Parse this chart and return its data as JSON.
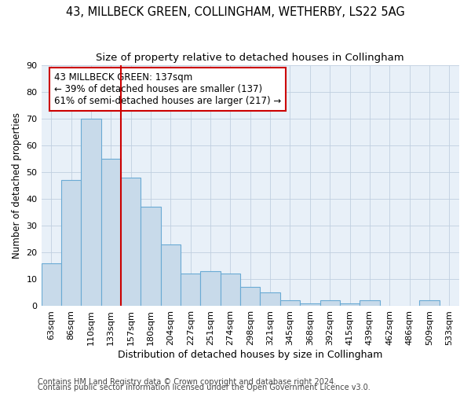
{
  "title1": "43, MILLBECK GREEN, COLLINGHAM, WETHERBY, LS22 5AG",
  "title2": "Size of property relative to detached houses in Collingham",
  "xlabel": "Distribution of detached houses by size in Collingham",
  "ylabel": "Number of detached properties",
  "bar_labels": [
    "63sqm",
    "86sqm",
    "110sqm",
    "133sqm",
    "157sqm",
    "180sqm",
    "204sqm",
    "227sqm",
    "251sqm",
    "274sqm",
    "298sqm",
    "321sqm",
    "345sqm",
    "368sqm",
    "392sqm",
    "415sqm",
    "439sqm",
    "462sqm",
    "486sqm",
    "509sqm",
    "533sqm"
  ],
  "bar_values": [
    16,
    47,
    70,
    55,
    48,
    37,
    23,
    12,
    13,
    12,
    7,
    5,
    2,
    1,
    2,
    1,
    2,
    0,
    0,
    2,
    0
  ],
  "bar_color": "#c8daea",
  "bar_edge_color": "#6aaad4",
  "vline_x": 3.5,
  "vline_color": "#cc0000",
  "annotation_text": "43 MILLBECK GREEN: 137sqm\n← 39% of detached houses are smaller (137)\n61% of semi-detached houses are larger (217) →",
  "annotation_box_color": "#ffffff",
  "annotation_box_edge": "#cc0000",
  "ylim": [
    0,
    90
  ],
  "yticks": [
    0,
    10,
    20,
    30,
    40,
    50,
    60,
    70,
    80,
    90
  ],
  "grid_color": "#c0cfe0",
  "bg_color": "#e8f0f8",
  "footer1": "Contains HM Land Registry data © Crown copyright and database right 2024.",
  "footer2": "Contains public sector information licensed under the Open Government Licence v3.0.",
  "title1_fontsize": 10.5,
  "title2_fontsize": 9.5,
  "xlabel_fontsize": 9,
  "ylabel_fontsize": 8.5,
  "tick_fontsize": 8,
  "annotation_fontsize": 8.5,
  "footer_fontsize": 7
}
